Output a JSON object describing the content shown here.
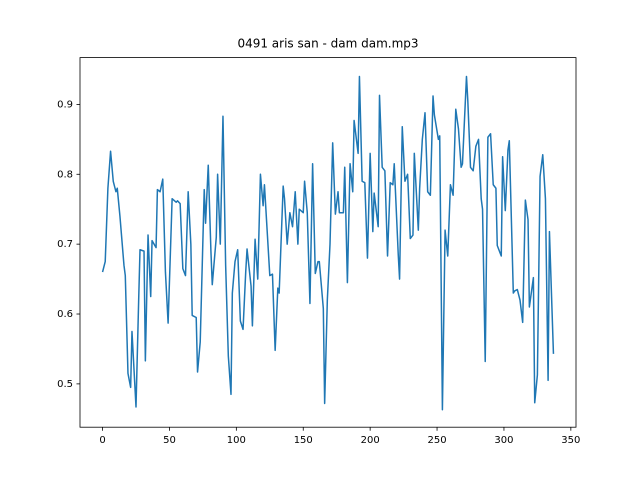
{
  "chart_data": {
    "type": "line",
    "title": "0491 aris san - dam dam.mp3",
    "x": [
      0,
      2,
      4,
      6,
      8,
      10,
      11,
      13,
      16,
      17,
      19,
      21,
      22,
      25,
      27,
      28,
      31,
      32,
      34,
      36,
      37,
      40,
      41,
      43,
      45,
      47,
      49,
      51,
      52,
      55,
      56,
      58,
      60,
      62,
      64,
      66,
      67,
      70,
      71,
      73,
      76,
      77,
      79,
      81,
      82,
      85,
      86,
      88,
      90,
      92,
      94,
      96,
      97,
      99,
      101,
      103,
      105,
      107,
      108,
      111,
      112,
      114,
      116,
      118,
      120,
      121,
      123,
      125,
      127,
      129,
      131,
      132,
      135,
      136,
      138,
      140,
      142,
      144,
      146,
      147,
      150,
      151,
      153,
      155,
      157,
      159,
      161,
      162,
      165,
      166,
      168,
      170,
      172,
      174,
      176,
      177,
      180,
      181,
      183,
      185,
      187,
      188,
      191,
      192,
      194,
      196,
      198,
      200,
      202,
      203,
      206,
      207,
      209,
      211,
      213,
      215,
      217,
      218,
      221,
      222,
      224,
      226,
      228,
      230,
      232,
      233,
      236,
      237,
      239,
      241,
      243,
      245,
      247,
      248,
      251,
      252,
      254,
      256,
      258,
      260,
      262,
      264,
      266,
      268,
      269,
      272,
      273,
      275,
      277,
      279,
      281,
      283,
      284,
      286,
      288,
      290,
      292,
      294,
      295,
      298,
      299,
      301,
      303,
      304,
      307,
      308,
      310,
      312,
      314,
      316,
      318,
      319,
      322,
      323,
      325,
      327,
      329,
      331,
      333,
      334,
      337
    ],
    "values": [
      0.66,
      0.675,
      0.78,
      0.833,
      0.79,
      0.775,
      0.78,
      0.74,
      0.67,
      0.655,
      0.515,
      0.495,
      0.575,
      0.467,
      0.62,
      0.692,
      0.69,
      0.533,
      0.713,
      0.625,
      0.705,
      0.695,
      0.778,
      0.775,
      0.793,
      0.66,
      0.587,
      0.705,
      0.765,
      0.76,
      0.762,
      0.758,
      0.665,
      0.655,
      0.775,
      0.7,
      0.598,
      0.595,
      0.517,
      0.56,
      0.778,
      0.73,
      0.813,
      0.69,
      0.642,
      0.71,
      0.8,
      0.7,
      0.883,
      0.67,
      0.54,
      0.485,
      0.63,
      0.675,
      0.692,
      0.59,
      0.578,
      0.66,
      0.693,
      0.64,
      0.583,
      0.707,
      0.65,
      0.8,
      0.755,
      0.785,
      0.72,
      0.655,
      0.657,
      0.548,
      0.637,
      0.63,
      0.783,
      0.765,
      0.7,
      0.745,
      0.725,
      0.775,
      0.7,
      0.75,
      0.745,
      0.79,
      0.745,
      0.615,
      0.815,
      0.658,
      0.675,
      0.675,
      0.608,
      0.472,
      0.62,
      0.7,
      0.845,
      0.743,
      0.775,
      0.745,
      0.745,
      0.81,
      0.645,
      0.815,
      0.775,
      0.877,
      0.83,
      0.94,
      0.79,
      0.788,
      0.68,
      0.83,
      0.718,
      0.773,
      0.725,
      0.913,
      0.81,
      0.805,
      0.683,
      0.788,
      0.785,
      0.815,
      0.685,
      0.65,
      0.868,
      0.79,
      0.8,
      0.708,
      0.713,
      0.83,
      0.72,
      0.78,
      0.85,
      0.888,
      0.775,
      0.77,
      0.912,
      0.885,
      0.85,
      0.855,
      0.463,
      0.72,
      0.683,
      0.785,
      0.77,
      0.893,
      0.865,
      0.81,
      0.815,
      0.94,
      0.905,
      0.81,
      0.805,
      0.84,
      0.85,
      0.765,
      0.75,
      0.532,
      0.853,
      0.858,
      0.785,
      0.78,
      0.698,
      0.683,
      0.825,
      0.748,
      0.835,
      0.848,
      0.63,
      0.633,
      0.635,
      0.62,
      0.588,
      0.763,
      0.735,
      0.61,
      0.652,
      0.473,
      0.513,
      0.797,
      0.828,
      0.765,
      0.505,
      0.718,
      0.543
    ],
    "color": "#1f77b4",
    "xlim": [
      -16.85,
      353.85
    ],
    "xticks": [
      0,
      50,
      100,
      150,
      200,
      250,
      300,
      350
    ],
    "ylim": [
      0.438,
      0.967
    ],
    "yticks": [
      0.5,
      0.6,
      0.7,
      0.8,
      0.9
    ]
  }
}
